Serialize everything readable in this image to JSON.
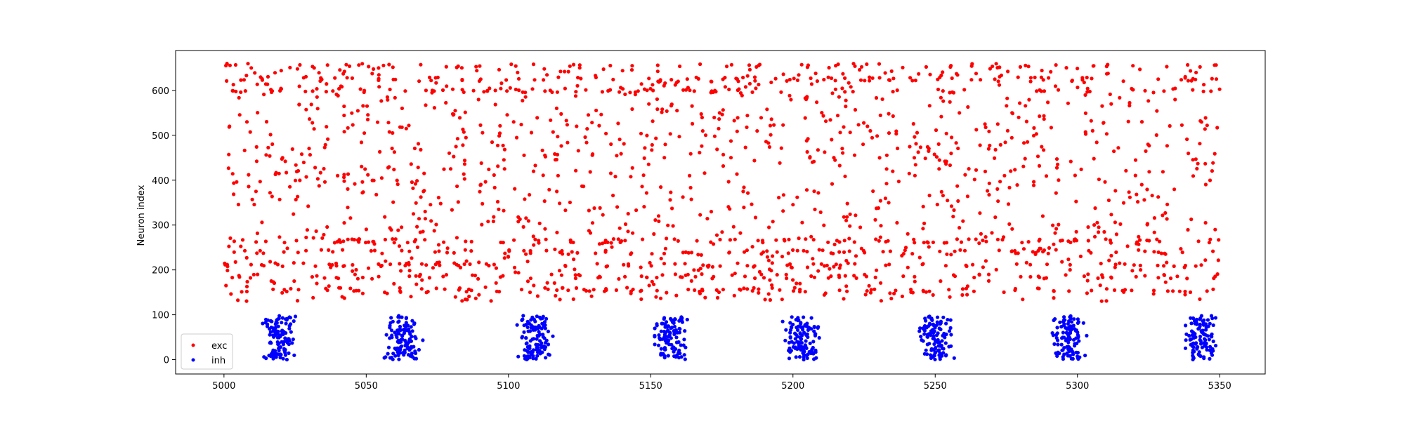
{
  "chart_data": {
    "type": "scatter",
    "title": "",
    "xlabel": "",
    "ylabel": "Neuron index",
    "xlim": [
      4983,
      5366
    ],
    "ylim": [
      -32,
      689
    ],
    "x_ticks": [
      5000,
      5050,
      5100,
      5150,
      5200,
      5250,
      5300,
      5350
    ],
    "y_ticks": [
      0,
      100,
      200,
      300,
      400,
      500,
      600
    ],
    "grid": false,
    "legend_position": "bottom-left",
    "series": [
      {
        "name": "exc",
        "color": "#ff0000",
        "generator": {
          "x_range": [
            5000,
            5350
          ],
          "y_range": [
            130,
            655
          ],
          "count": 1900,
          "seed": 7,
          "dense_y_bands": [
            155,
            185,
            210,
            240,
            265,
            600,
            625,
            655
          ]
        }
      },
      {
        "name": "inh",
        "color": "#0000ff",
        "generator": {
          "burst_centers": [
            5020,
            5063,
            5109,
            5157,
            5203,
            5250,
            5297,
            5343
          ],
          "burst_half_width": 5,
          "y_range": [
            0,
            98
          ],
          "points_per_burst": 110,
          "seed": 11
        }
      }
    ]
  }
}
